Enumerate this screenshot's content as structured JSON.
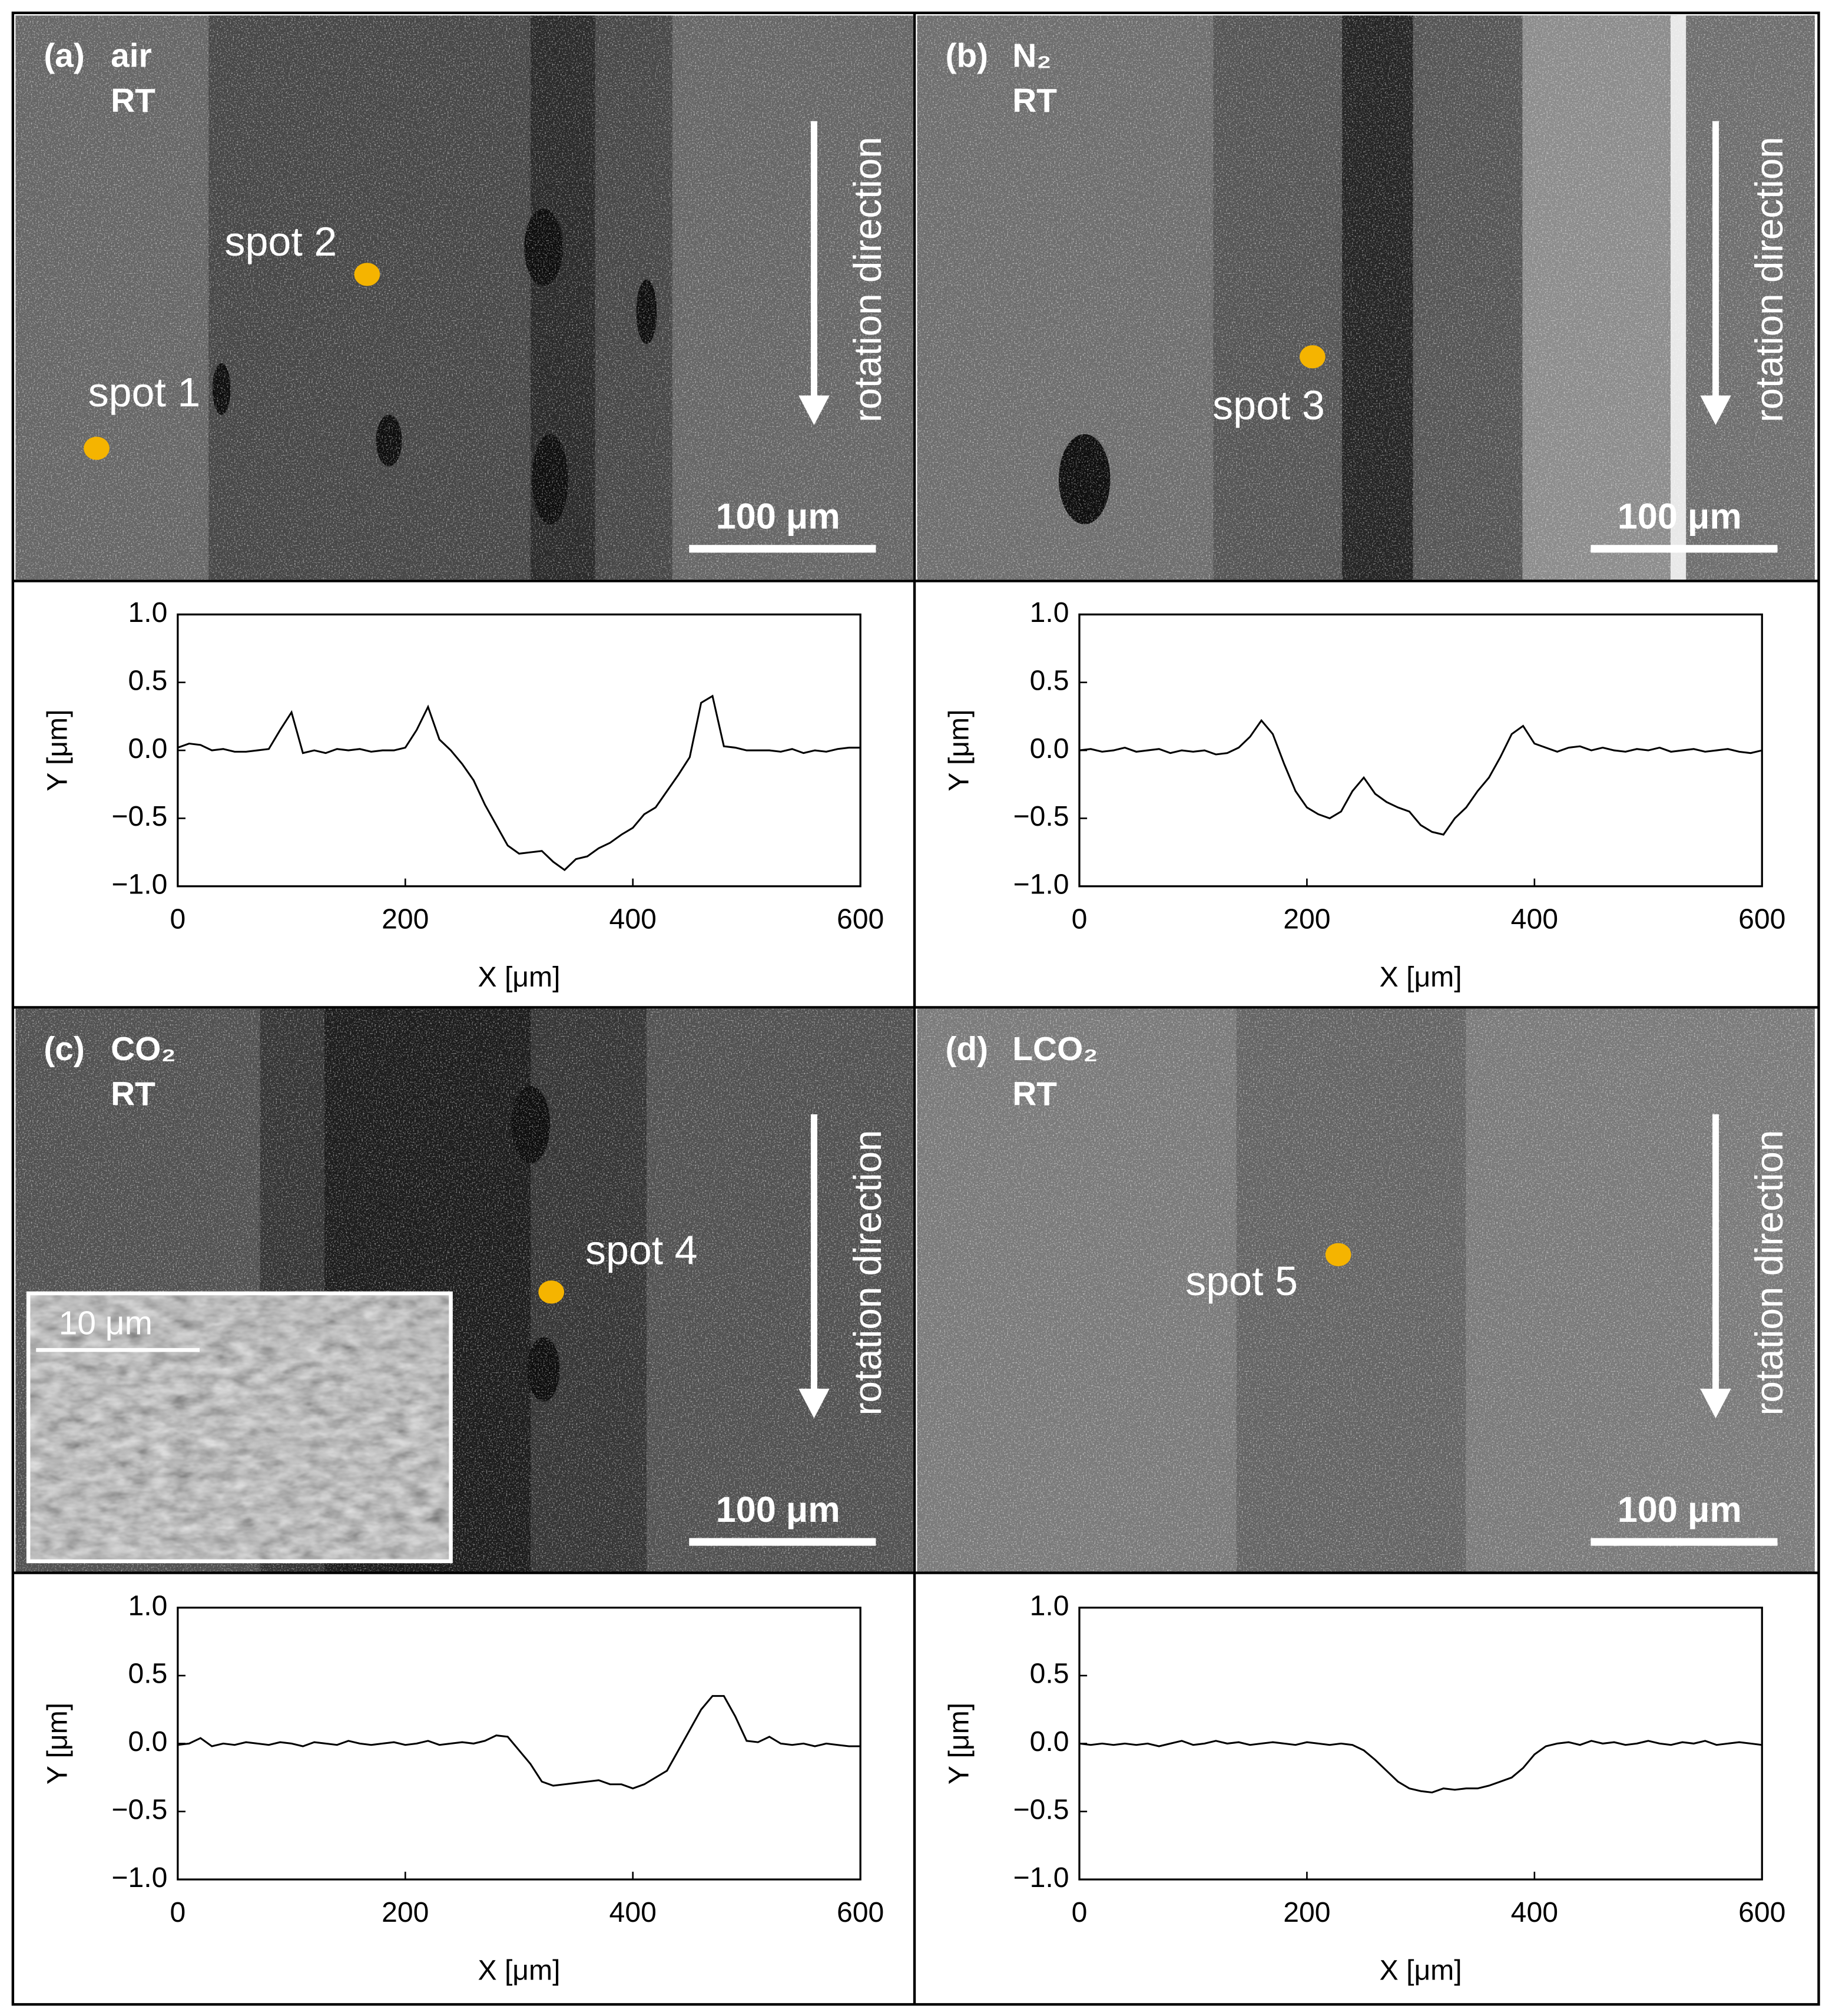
{
  "chart_data": [
    {
      "type": "line",
      "panel": "(a)",
      "atmosphere": "air",
      "temperature": "RT",
      "spots": [
        "spot 1",
        "spot 2"
      ],
      "arrow_label": "rotation direction",
      "scale_bar": "100 μm",
      "xlabel": "X [μm]",
      "ylabel": "Y [μm]",
      "x": [
        0,
        10,
        20,
        30,
        40,
        50,
        60,
        70,
        80,
        90,
        100,
        110,
        120,
        130,
        140,
        150,
        160,
        170,
        180,
        190,
        200,
        210,
        220,
        230,
        240,
        250,
        260,
        270,
        280,
        290,
        300,
        310,
        320,
        330,
        340,
        350,
        360,
        370,
        380,
        390,
        400,
        410,
        420,
        430,
        440,
        450,
        460,
        470,
        480,
        490,
        500,
        510,
        520,
        530,
        540,
        550,
        560,
        570,
        580,
        590,
        600
      ],
      "series": [
        {
          "color": "#000000",
          "values": [
            0.02,
            0.05,
            0.04,
            0.0,
            0.01,
            -0.01,
            -0.01,
            0.0,
            0.01,
            0.15,
            0.28,
            -0.02,
            0.0,
            -0.02,
            0.01,
            0.0,
            0.01,
            -0.01,
            0.0,
            0.0,
            0.02,
            0.15,
            0.32,
            0.08,
            0.0,
            -0.1,
            -0.22,
            -0.4,
            -0.55,
            -0.7,
            -0.76,
            -0.75,
            -0.74,
            -0.82,
            -0.88,
            -0.8,
            -0.78,
            -0.72,
            -0.68,
            -0.62,
            -0.57,
            -0.47,
            -0.42,
            -0.3,
            -0.18,
            -0.05,
            0.35,
            0.4,
            0.03,
            0.02,
            0.0,
            0.0,
            0.0,
            -0.01,
            0.01,
            -0.02,
            0.0,
            -0.01,
            0.01,
            0.02,
            0.02
          ]
        }
      ],
      "xlim": [
        0,
        600
      ],
      "ylim": [
        -1,
        1
      ],
      "xticks": [
        0,
        200,
        400,
        600
      ],
      "yticks": [
        {
          "value": -1,
          "label": "−1.0"
        },
        {
          "value": -0.5,
          "label": "−0.5"
        },
        {
          "value": 0,
          "label": "0.0"
        },
        0.5,
        {
          "value": 1,
          "label": "1.0"
        }
      ]
    },
    {
      "type": "line",
      "panel": "(b)",
      "atmosphere": "N₂",
      "temperature": "RT",
      "spots": [
        "spot 3"
      ],
      "arrow_label": "rotation direction",
      "scale_bar": "100 μm",
      "xlabel": "X [μm]",
      "ylabel": "Y [μm]",
      "x": [
        0,
        10,
        20,
        30,
        40,
        50,
        60,
        70,
        80,
        90,
        100,
        110,
        120,
        130,
        140,
        150,
        160,
        170,
        180,
        190,
        200,
        210,
        220,
        230,
        240,
        250,
        260,
        270,
        280,
        290,
        300,
        310,
        320,
        330,
        340,
        350,
        360,
        370,
        380,
        390,
        400,
        410,
        420,
        430,
        440,
        450,
        460,
        470,
        480,
        490,
        500,
        510,
        520,
        530,
        540,
        550,
        560,
        570,
        580,
        590,
        600
      ],
      "series": [
        {
          "color": "#000000",
          "values": [
            0.0,
            0.01,
            -0.01,
            0.0,
            0.02,
            -0.01,
            0.0,
            0.01,
            -0.02,
            0.0,
            -0.01,
            0.0,
            -0.03,
            -0.02,
            0.02,
            0.1,
            0.22,
            0.12,
            -0.1,
            -0.3,
            -0.42,
            -0.47,
            -0.5,
            -0.45,
            -0.3,
            -0.2,
            -0.32,
            -0.38,
            -0.42,
            -0.45,
            -0.55,
            -0.6,
            -0.62,
            -0.5,
            -0.42,
            -0.3,
            -0.2,
            -0.05,
            0.12,
            0.18,
            0.05,
            0.02,
            -0.01,
            0.02,
            0.03,
            0.0,
            0.02,
            0.0,
            -0.01,
            0.01,
            0.0,
            0.02,
            -0.01,
            0.0,
            0.01,
            -0.01,
            0.0,
            0.01,
            -0.01,
            -0.02,
            0.0
          ]
        }
      ],
      "xlim": [
        0,
        600
      ],
      "ylim": [
        -1,
        1
      ],
      "xticks": [
        0,
        200,
        400,
        600
      ],
      "yticks": [
        {
          "value": -1,
          "label": "−1.0"
        },
        {
          "value": -0.5,
          "label": "−0.5"
        },
        {
          "value": 0,
          "label": "0.0"
        },
        0.5,
        {
          "value": 1,
          "label": "1.0"
        }
      ]
    },
    {
      "type": "line",
      "panel": "(c)",
      "atmosphere": "CO₂",
      "temperature": "RT",
      "spots": [
        "spot 4"
      ],
      "arrow_label": "rotation direction",
      "scale_bar": "100 μm",
      "inset_scale_bar": "10 μm",
      "xlabel": "X [μm]",
      "ylabel": "Y [μm]",
      "x": [
        0,
        10,
        20,
        30,
        40,
        50,
        60,
        70,
        80,
        90,
        100,
        110,
        120,
        130,
        140,
        150,
        160,
        170,
        180,
        190,
        200,
        210,
        220,
        230,
        240,
        250,
        260,
        270,
        280,
        290,
        300,
        310,
        320,
        330,
        340,
        350,
        360,
        370,
        380,
        390,
        400,
        410,
        420,
        430,
        440,
        450,
        460,
        470,
        480,
        490,
        500,
        510,
        520,
        530,
        540,
        550,
        560,
        570,
        580,
        590,
        600
      ],
      "series": [
        {
          "color": "#000000",
          "values": [
            -0.01,
            0.0,
            0.04,
            -0.02,
            0.0,
            -0.01,
            0.01,
            0.0,
            -0.01,
            0.01,
            0.0,
            -0.02,
            0.01,
            0.0,
            -0.01,
            0.02,
            0.0,
            -0.01,
            0.0,
            0.01,
            -0.01,
            0.0,
            0.02,
            -0.01,
            0.0,
            0.01,
            0.0,
            0.02,
            0.06,
            0.05,
            -0.05,
            -0.15,
            -0.28,
            -0.31,
            -0.3,
            -0.29,
            -0.28,
            -0.27,
            -0.3,
            -0.3,
            -0.33,
            -0.3,
            -0.25,
            -0.2,
            -0.05,
            0.1,
            0.25,
            0.35,
            0.35,
            0.2,
            0.02,
            0.01,
            0.05,
            0.0,
            -0.01,
            0.0,
            -0.02,
            0.0,
            -0.01,
            -0.02,
            -0.02
          ]
        }
      ],
      "xlim": [
        0,
        600
      ],
      "ylim": [
        -1,
        1
      ],
      "xticks": [
        0,
        200,
        400,
        600
      ],
      "yticks": [
        {
          "value": -1,
          "label": "−1.0"
        },
        {
          "value": -0.5,
          "label": "−0.5"
        },
        {
          "value": 0,
          "label": "0.0"
        },
        0.5,
        {
          "value": 1,
          "label": "1.0"
        }
      ]
    },
    {
      "type": "line",
      "panel": "(d)",
      "atmosphere": "LCO₂",
      "temperature": "RT",
      "spots": [
        "spot 5"
      ],
      "arrow_label": "rotation direction",
      "scale_bar": "100 μm",
      "xlabel": "X [μm]",
      "ylabel": "Y [μm]",
      "x": [
        0,
        10,
        20,
        30,
        40,
        50,
        60,
        70,
        80,
        90,
        100,
        110,
        120,
        130,
        140,
        150,
        160,
        170,
        180,
        190,
        200,
        210,
        220,
        230,
        240,
        250,
        260,
        270,
        280,
        290,
        300,
        310,
        320,
        330,
        340,
        350,
        360,
        370,
        380,
        390,
        400,
        410,
        420,
        430,
        440,
        450,
        460,
        470,
        480,
        490,
        500,
        510,
        520,
        530,
        540,
        550,
        560,
        570,
        580,
        590,
        600
      ],
      "series": [
        {
          "color": "#000000",
          "values": [
            0.0,
            -0.01,
            0.0,
            -0.01,
            0.0,
            -0.01,
            0.0,
            -0.02,
            0.0,
            0.02,
            -0.01,
            0.0,
            0.02,
            0.0,
            0.01,
            -0.01,
            0.0,
            0.01,
            0.0,
            -0.01,
            0.01,
            0.0,
            -0.01,
            0.0,
            -0.01,
            -0.05,
            -0.12,
            -0.2,
            -0.28,
            -0.33,
            -0.35,
            -0.36,
            -0.33,
            -0.34,
            -0.33,
            -0.33,
            -0.31,
            -0.28,
            -0.25,
            -0.18,
            -0.08,
            -0.02,
            0.0,
            0.01,
            -0.01,
            0.02,
            0.0,
            0.01,
            -0.01,
            0.0,
            0.02,
            0.0,
            -0.01,
            0.01,
            0.0,
            0.02,
            -0.01,
            0.0,
            0.01,
            0.0,
            -0.01
          ]
        }
      ],
      "xlim": [
        0,
        600
      ],
      "ylim": [
        -1,
        1
      ],
      "xticks": [
        0,
        200,
        400,
        600
      ],
      "yticks": [
        {
          "value": -1,
          "label": "−1.0"
        },
        {
          "value": -0.5,
          "label": "−0.5"
        },
        {
          "value": 0,
          "label": "0.0"
        },
        0.5,
        {
          "value": 1,
          "label": "1.0"
        }
      ]
    }
  ]
}
